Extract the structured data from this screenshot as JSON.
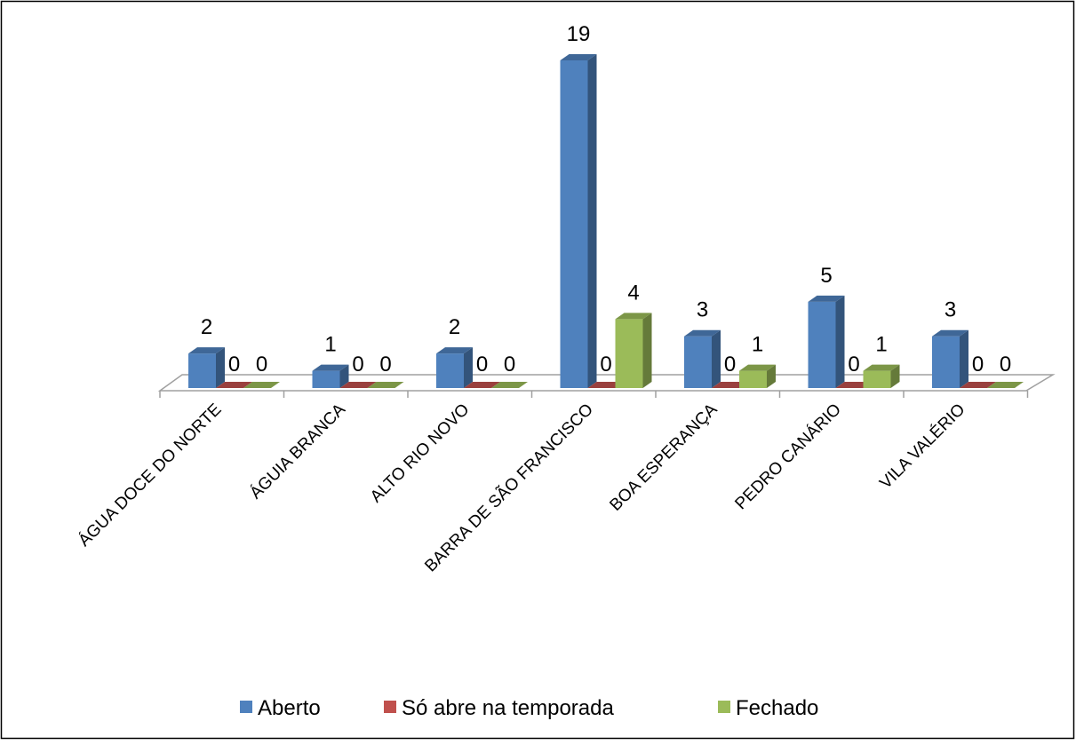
{
  "chart_data": {
    "type": "bar3d",
    "categories": [
      "ÁGUA DOCE DO NORTE",
      "ÁGUIA BRANCA",
      "ALTO RIO NOVO",
      "BARRA DE SÃO FRANCISCO",
      "BOA ESPERANÇA",
      "PEDRO CANÁRIO",
      "VILA VALÉRIO"
    ],
    "series": [
      {
        "name": "Aberto",
        "color": "#4f81bd",
        "values": [
          2,
          1,
          2,
          19,
          3,
          5,
          3
        ]
      },
      {
        "name": "Só abre na temporada",
        "color": "#c0504d",
        "values": [
          0,
          0,
          0,
          0,
          0,
          0,
          0
        ]
      },
      {
        "name": "Fechado",
        "color": "#9bbb59",
        "values": [
          0,
          0,
          0,
          4,
          1,
          1,
          0
        ]
      }
    ],
    "legend": "bottom"
  }
}
